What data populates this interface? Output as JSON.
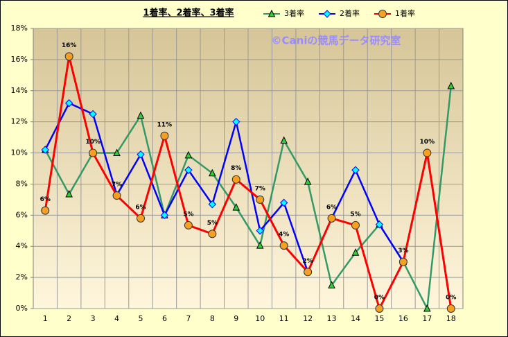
{
  "chart_data": {
    "type": "line",
    "title": "1着率、2着率、3着率",
    "annotation": "©Caniの競馬データ研究室",
    "categories": [
      "1",
      "2",
      "3",
      "4",
      "5",
      "6",
      "7",
      "8",
      "9",
      "10",
      "11",
      "12",
      "13",
      "14",
      "15",
      "16",
      "17",
      "18"
    ],
    "series": [
      {
        "name": "3着率",
        "color": "#339966",
        "marker": "triangle",
        "marker_color": "#33cc33",
        "values": [
          10.2,
          7.35,
          10.0,
          10.0,
          12.4,
          6.0,
          9.85,
          8.7,
          6.5,
          4.05,
          10.8,
          8.15,
          1.5,
          3.6,
          5.4,
          3.0,
          0,
          14.3
        ]
      },
      {
        "name": "2着率",
        "color": "#0000ff",
        "marker": "diamond",
        "marker_color": "#00ffff",
        "values": [
          10.2,
          13.2,
          12.5,
          7.3,
          9.9,
          6.0,
          8.9,
          6.7,
          12.0,
          5.0,
          6.8,
          2.35,
          5.8,
          8.9,
          5.4,
          3.0,
          10.0,
          0
        ]
      },
      {
        "name": "1着率",
        "color": "#ff0000",
        "marker": "circle",
        "marker_color": "#f5a020",
        "values": [
          6.3,
          16.2,
          10.0,
          7.26,
          5.8,
          11.1,
          5.35,
          4.8,
          8.3,
          7.0,
          4.05,
          2.35,
          5.8,
          5.35,
          0,
          3.0,
          10.0,
          0
        ],
        "value_labels": [
          "6%",
          "16%",
          "10%",
          "7%",
          "6%",
          "11%",
          "5%",
          "5%",
          "8%",
          "7%",
          "4%",
          "2%",
          "6%",
          "5%",
          "0%",
          "3%",
          "10%",
          "0%"
        ]
      }
    ],
    "ylim": [
      0,
      18
    ],
    "yticks": [
      {
        "value": 0,
        "label": "0%"
      },
      {
        "value": 2,
        "label": "2%"
      },
      {
        "value": 4,
        "label": "4%"
      },
      {
        "value": 6,
        "label": "6%"
      },
      {
        "value": 8,
        "label": "8%"
      },
      {
        "value": 10,
        "label": "10%"
      },
      {
        "value": 12,
        "label": "12%"
      },
      {
        "value": 14,
        "label": "14%"
      },
      {
        "value": 16,
        "label": "16%"
      },
      {
        "value": 18,
        "label": "18%"
      }
    ],
    "grid": true
  }
}
